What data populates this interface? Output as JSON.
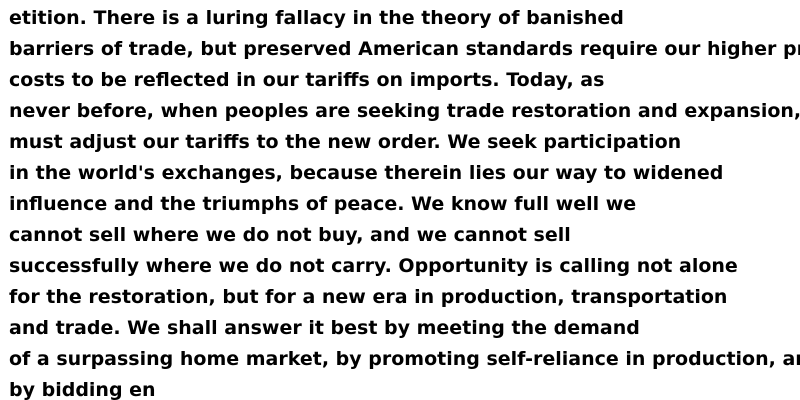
{
  "document": {
    "text_color": "#000000",
    "background_color": "#ffffff",
    "lines": [
      "etition. There is a luring fallacy in the theory of banished",
      "barriers of trade, but preserved American standards require our higher production",
      "costs to be reflected in our tariffs on imports. Today, as",
      "never before, when peoples are seeking trade restoration and expansion, we",
      "must adjust our tariffs to the new order. We seek participation",
      "in the world's exchanges, because therein lies our way to widened",
      "influence and the triumphs of peace. We know full well we",
      "cannot sell where we do not buy, and we cannot sell",
      "successfully where we do not carry. Opportunity is calling not alone",
      "for the restoration, but for a new era in production, transportation",
      "and trade. We shall answer it best by meeting the demand",
      "of a surpassing home market, by promoting self-reliance in production, and",
      "by bidding en"
    ]
  }
}
